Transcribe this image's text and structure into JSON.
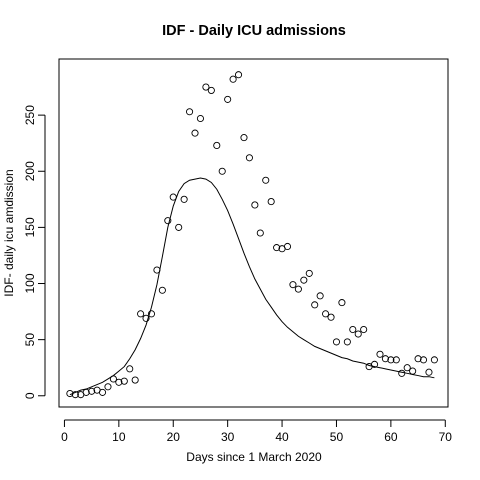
{
  "chart_data": {
    "type": "scatter",
    "title": "IDF - Daily ICU admissions",
    "xlabel": "Days since 1 March 2020",
    "ylabel": "IDF- daily icu amdission",
    "xlim": [
      -1,
      70.5
    ],
    "ylim": [
      -10,
      300
    ],
    "xticks": [
      0,
      10,
      20,
      30,
      40,
      50,
      60,
      70
    ],
    "yticks": [
      0,
      50,
      100,
      150,
      200,
      250
    ],
    "grid": false,
    "legend": "none",
    "series": [
      {
        "kind": "points",
        "marker": "open-circle",
        "x": [
          1,
          2,
          3,
          4,
          5,
          6,
          7,
          8,
          9,
          10,
          11,
          12,
          13,
          14,
          15,
          16,
          17,
          18,
          19,
          20,
          21,
          22,
          23,
          24,
          25,
          26,
          27,
          28,
          29,
          30,
          31,
          32,
          33,
          34,
          35,
          36,
          37,
          38,
          39,
          40,
          41,
          42,
          43,
          44,
          45,
          46,
          47,
          48,
          49,
          50,
          51,
          52,
          53,
          54,
          55,
          56,
          57,
          58,
          59,
          60,
          61,
          62,
          63,
          64,
          65,
          66,
          67,
          68
        ],
        "y": [
          2,
          1,
          1,
          3,
          4,
          5,
          3,
          8,
          15,
          12,
          13,
          24,
          14,
          73,
          69,
          73,
          112,
          94,
          156,
          177,
          150,
          175,
          253,
          234,
          247,
          275,
          272,
          223,
          200,
          264,
          282,
          286,
          230,
          212,
          170,
          145,
          192,
          173,
          132,
          131,
          133,
          99,
          95,
          103,
          109,
          81,
          89,
          73,
          70,
          48,
          83,
          48,
          59,
          55,
          59,
          26,
          28,
          37,
          33,
          32,
          32,
          20,
          25,
          22,
          33,
          32,
          21,
          32
        ]
      },
      {
        "kind": "fit-curve",
        "x": [
          1,
          2,
          3,
          4,
          5,
          6,
          7,
          8,
          9,
          10,
          11,
          12,
          13,
          14,
          15,
          16,
          17,
          18,
          19,
          20,
          21,
          22,
          23,
          24,
          25,
          26,
          27,
          28,
          29,
          30,
          31,
          32,
          33,
          34,
          35,
          36,
          37,
          38,
          39,
          40,
          41,
          42,
          43,
          44,
          45,
          46,
          47,
          48,
          49,
          50,
          51,
          52,
          53,
          54,
          55,
          56,
          57,
          58,
          59,
          60,
          61,
          62,
          63,
          64,
          65,
          66,
          67,
          68
        ],
        "y": [
          1,
          3,
          5,
          6,
          8,
          10,
          12,
          15,
          18,
          22,
          26,
          33,
          41,
          51,
          63,
          79,
          99,
          124,
          150,
          169,
          182,
          189,
          192,
          193,
          194,
          193,
          190,
          184,
          175,
          165,
          153,
          140,
          127,
          115,
          104,
          95,
          86,
          79,
          72,
          66,
          61,
          57,
          53,
          50,
          47,
          44,
          42,
          40,
          38,
          36,
          34,
          33,
          31,
          30,
          29,
          27,
          26,
          25,
          24,
          23,
          22,
          21,
          20,
          19,
          18,
          17,
          17,
          16
        ]
      }
    ]
  }
}
